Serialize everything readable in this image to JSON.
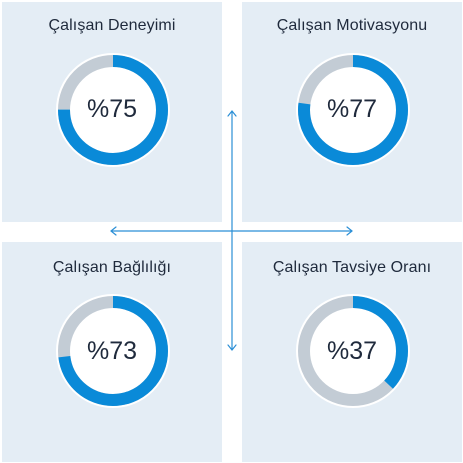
{
  "colors": {
    "fill": "#0a8ad8",
    "track": "#c3ccd5",
    "card_bg": "#e4edf5",
    "text": "#1f2a3c"
  },
  "cards": [
    {
      "title": "Çalışan Deneyimi",
      "value_label": "%75",
      "value": 75
    },
    {
      "title": "Çalışan Motivasyonu",
      "value_label": "%77",
      "value": 77
    },
    {
      "title": "Çalışan Bağlılığı",
      "value_label": "%73",
      "value": 73
    },
    {
      "title": "Çalışan Tavsiye Oranı",
      "value_label": "%37",
      "value": 37
    }
  ],
  "icons": {
    "vertical_axis": "double-arrow-vertical-icon",
    "horizontal_axis": "double-arrow-horizontal-icon"
  }
}
